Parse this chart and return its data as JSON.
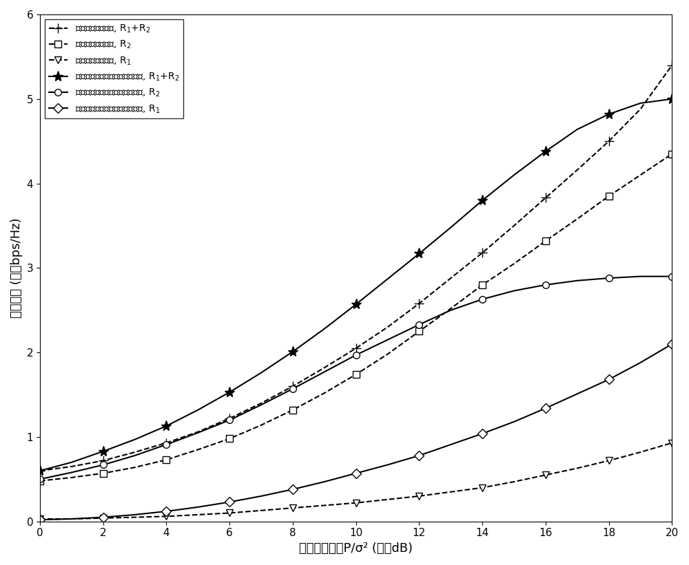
{
  "title": "",
  "xlabel": "发送功率约束P/σ² (单位dB)",
  "ylabel": "可达速率 (单位bps/Hz)",
  "xlim": [
    0,
    20
  ],
  "ylim": [
    0,
    6
  ],
  "xticks": [
    0,
    2,
    4,
    6,
    8,
    10,
    12,
    14,
    16,
    18,
    20
  ],
  "yticks": [
    0,
    1,
    2,
    3,
    4,
    5,
    6
  ],
  "x_values": [
    0,
    1,
    2,
    3,
    4,
    5,
    6,
    7,
    8,
    9,
    10,
    11,
    12,
    13,
    14,
    15,
    16,
    17,
    18,
    19,
    20
  ],
  "uniform_R1R2": [
    0.6,
    0.65,
    0.72,
    0.82,
    0.93,
    1.06,
    1.22,
    1.4,
    1.6,
    1.82,
    2.05,
    2.3,
    2.58,
    2.88,
    3.18,
    3.5,
    3.83,
    4.16,
    4.5,
    4.88,
    5.4
  ],
  "uniform_R2": [
    0.48,
    0.52,
    0.57,
    0.64,
    0.73,
    0.85,
    0.98,
    1.14,
    1.32,
    1.52,
    1.74,
    1.98,
    2.25,
    2.52,
    2.8,
    3.05,
    3.32,
    3.58,
    3.85,
    4.1,
    4.35
  ],
  "uniform_R1": [
    0.03,
    0.03,
    0.04,
    0.05,
    0.06,
    0.08,
    0.1,
    0.13,
    0.16,
    0.19,
    0.22,
    0.26,
    0.3,
    0.35,
    0.4,
    0.47,
    0.55,
    0.63,
    0.72,
    0.82,
    0.93
  ],
  "stackelberg_R1R2": [
    0.6,
    0.7,
    0.83,
    0.97,
    1.13,
    1.32,
    1.53,
    1.76,
    2.01,
    2.28,
    2.57,
    2.87,
    3.17,
    3.48,
    3.8,
    4.1,
    4.38,
    4.64,
    4.82,
    4.95,
    5.0
  ],
  "stackelberg_R2": [
    0.5,
    0.58,
    0.67,
    0.78,
    0.91,
    1.05,
    1.2,
    1.38,
    1.57,
    1.77,
    1.97,
    2.15,
    2.33,
    2.5,
    2.63,
    2.73,
    2.8,
    2.85,
    2.88,
    2.9,
    2.9
  ],
  "stackelberg_R1": [
    0.02,
    0.03,
    0.05,
    0.08,
    0.12,
    0.17,
    0.23,
    0.3,
    0.38,
    0.47,
    0.57,
    0.67,
    0.78,
    0.91,
    1.04,
    1.18,
    1.34,
    1.51,
    1.68,
    1.88,
    2.1
  ],
  "color_black": "#000000",
  "linestyle_dashed": "--",
  "linestyle_solid": "-",
  "legend_uniform_R1R2": "均匀功率分配算法, R$_1$+R$_2$",
  "legend_uniform_R2": "均匀功率分配算法, R$_2$",
  "legend_uniform_R1": "均匀功率分配算法, R$_1$",
  "legend_stackelberg_R1R2": "斯坦科尔伯格博弈功率分配算法, R$_1$+R$_2$",
  "legend_stackelberg_R2": "斯坦科尔伯格博弈功率分配算法, R$_2$",
  "legend_stackelberg_R1": "斯坦科尔伯格博弈功率分配算法, R$_1$"
}
